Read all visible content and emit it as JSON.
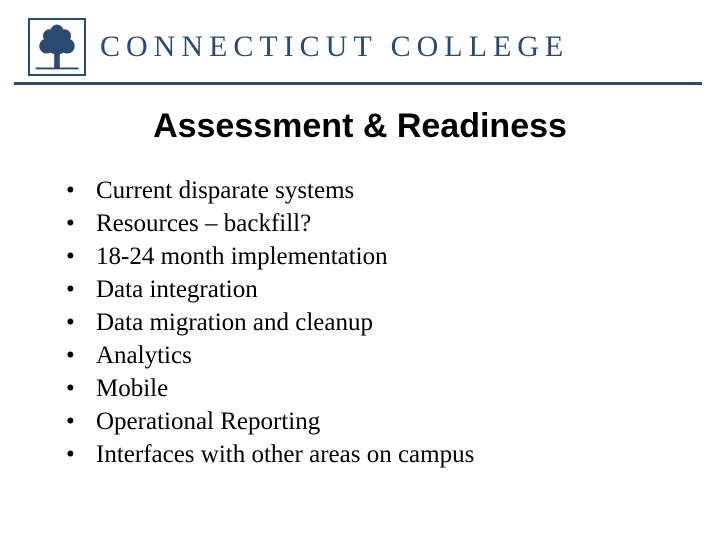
{
  "logo": {
    "border_color": "#2b4a6f",
    "tree_color": "#2b4a6f"
  },
  "wordmark": {
    "text": "CONNECTICUT COLLEGE",
    "color": "#2b4a6f",
    "fontsize": 30
  },
  "header": {
    "underline_color": "#2b4a6f"
  },
  "title": {
    "text": "Assessment & Readiness",
    "color": "#000000",
    "fontsize": 34
  },
  "bullets": {
    "color": "#000000",
    "fontsize": 25,
    "line_height": 1.32,
    "items": [
      "Current disparate systems",
      "Resources – backfill?",
      "18-24 month implementation",
      "Data integration",
      "Data migration and cleanup",
      "Analytics",
      "Mobile",
      "Operational Reporting",
      "Interfaces with other areas on campus"
    ]
  }
}
